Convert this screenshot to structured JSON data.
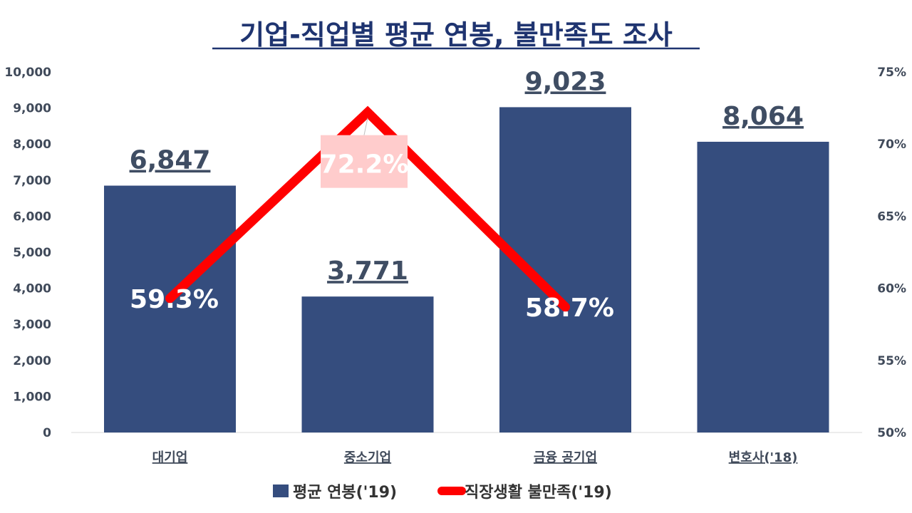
{
  "chart_data": {
    "type": "bar",
    "title": "기업-직업별 평균 연봉, 불만족도 조사",
    "categories": [
      "대기업",
      "중소기업",
      "금융 공기업",
      "변호사('18)"
    ],
    "y_left": {
      "min": 0,
      "max": 10000,
      "step": 1000,
      "ticks": [
        "0",
        "1,000",
        "2,000",
        "3,000",
        "4,000",
        "5,000",
        "6,000",
        "7,000",
        "8,000",
        "9,000",
        "10,000"
      ]
    },
    "y_right": {
      "min": 50,
      "max": 75,
      "step": 5,
      "ticks": [
        "50%",
        "55%",
        "60%",
        "65%",
        "70%",
        "75%"
      ]
    },
    "series": [
      {
        "name": "평균 연봉('19)",
        "type": "bar",
        "axis": "left",
        "color": "#354d7e",
        "values": [
          6847,
          3771,
          9023,
          8064
        ],
        "labels": [
          "6,847",
          "3,771",
          "9,023",
          "8,064"
        ]
      },
      {
        "name": "직장생활 불만족('19)",
        "type": "line",
        "axis": "right",
        "color": "#ff0000",
        "values": [
          59.3,
          72.2,
          58.7,
          null
        ],
        "labels": [
          "59.3%",
          "72.2%",
          "58.7%",
          null
        ]
      }
    ],
    "legend": "bottom",
    "grid": false
  }
}
